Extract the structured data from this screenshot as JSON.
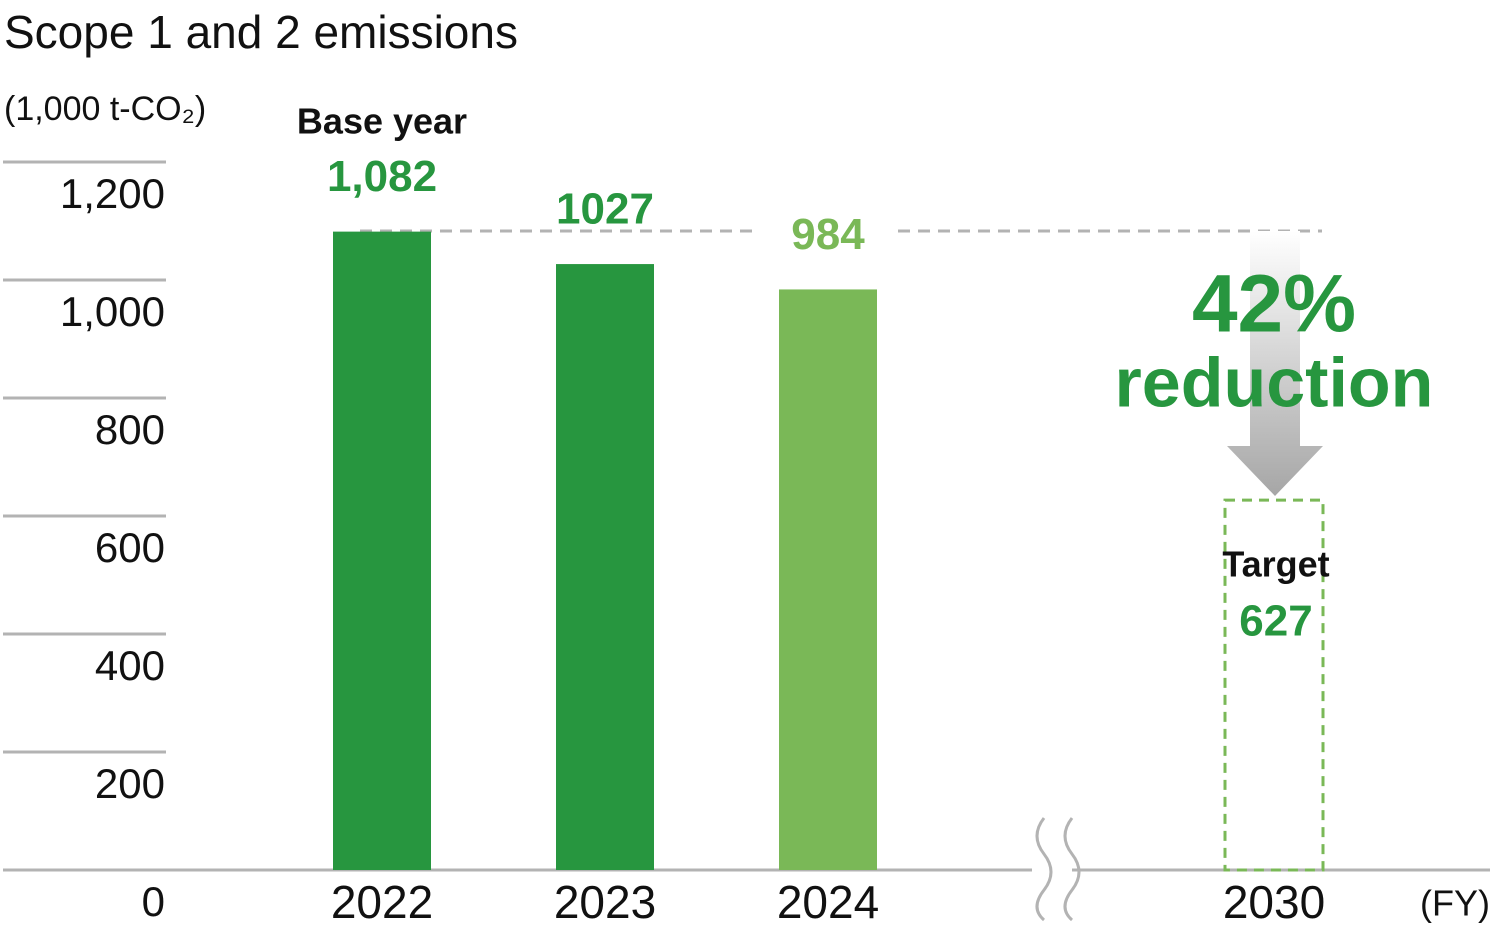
{
  "chart_data": {
    "type": "bar",
    "title": "Scope 1 and 2 emissions",
    "y_label": "(1,000 t-CO₂)",
    "x_label": "(FY)",
    "categories": [
      "2022",
      "2023",
      "2024",
      "2030"
    ],
    "values": [
      1082,
      1027,
      984,
      627
    ],
    "value_labels": [
      "1,082",
      "1027",
      "984",
      "627"
    ],
    "colors": [
      "#27963f",
      "#27963f",
      "#7ab857",
      "#7ab857"
    ],
    "label_colors": [
      "#27963f",
      "#27963f",
      "#7ab857",
      "#27963f"
    ],
    "styles": [
      "solid",
      "solid",
      "solid",
      "dashed"
    ],
    "annotations": {
      "base_year": "Base year",
      "target": "Target",
      "reduction_pct": "42%",
      "reduction": "reduction"
    },
    "ylim": [
      0,
      1200
    ],
    "yticks": [
      0,
      200,
      400,
      600,
      800,
      {
        "value": 1000,
        "label": "1,000"
      },
      {
        "value": 1200,
        "label": "1,200"
      }
    ],
    "grid": true
  }
}
